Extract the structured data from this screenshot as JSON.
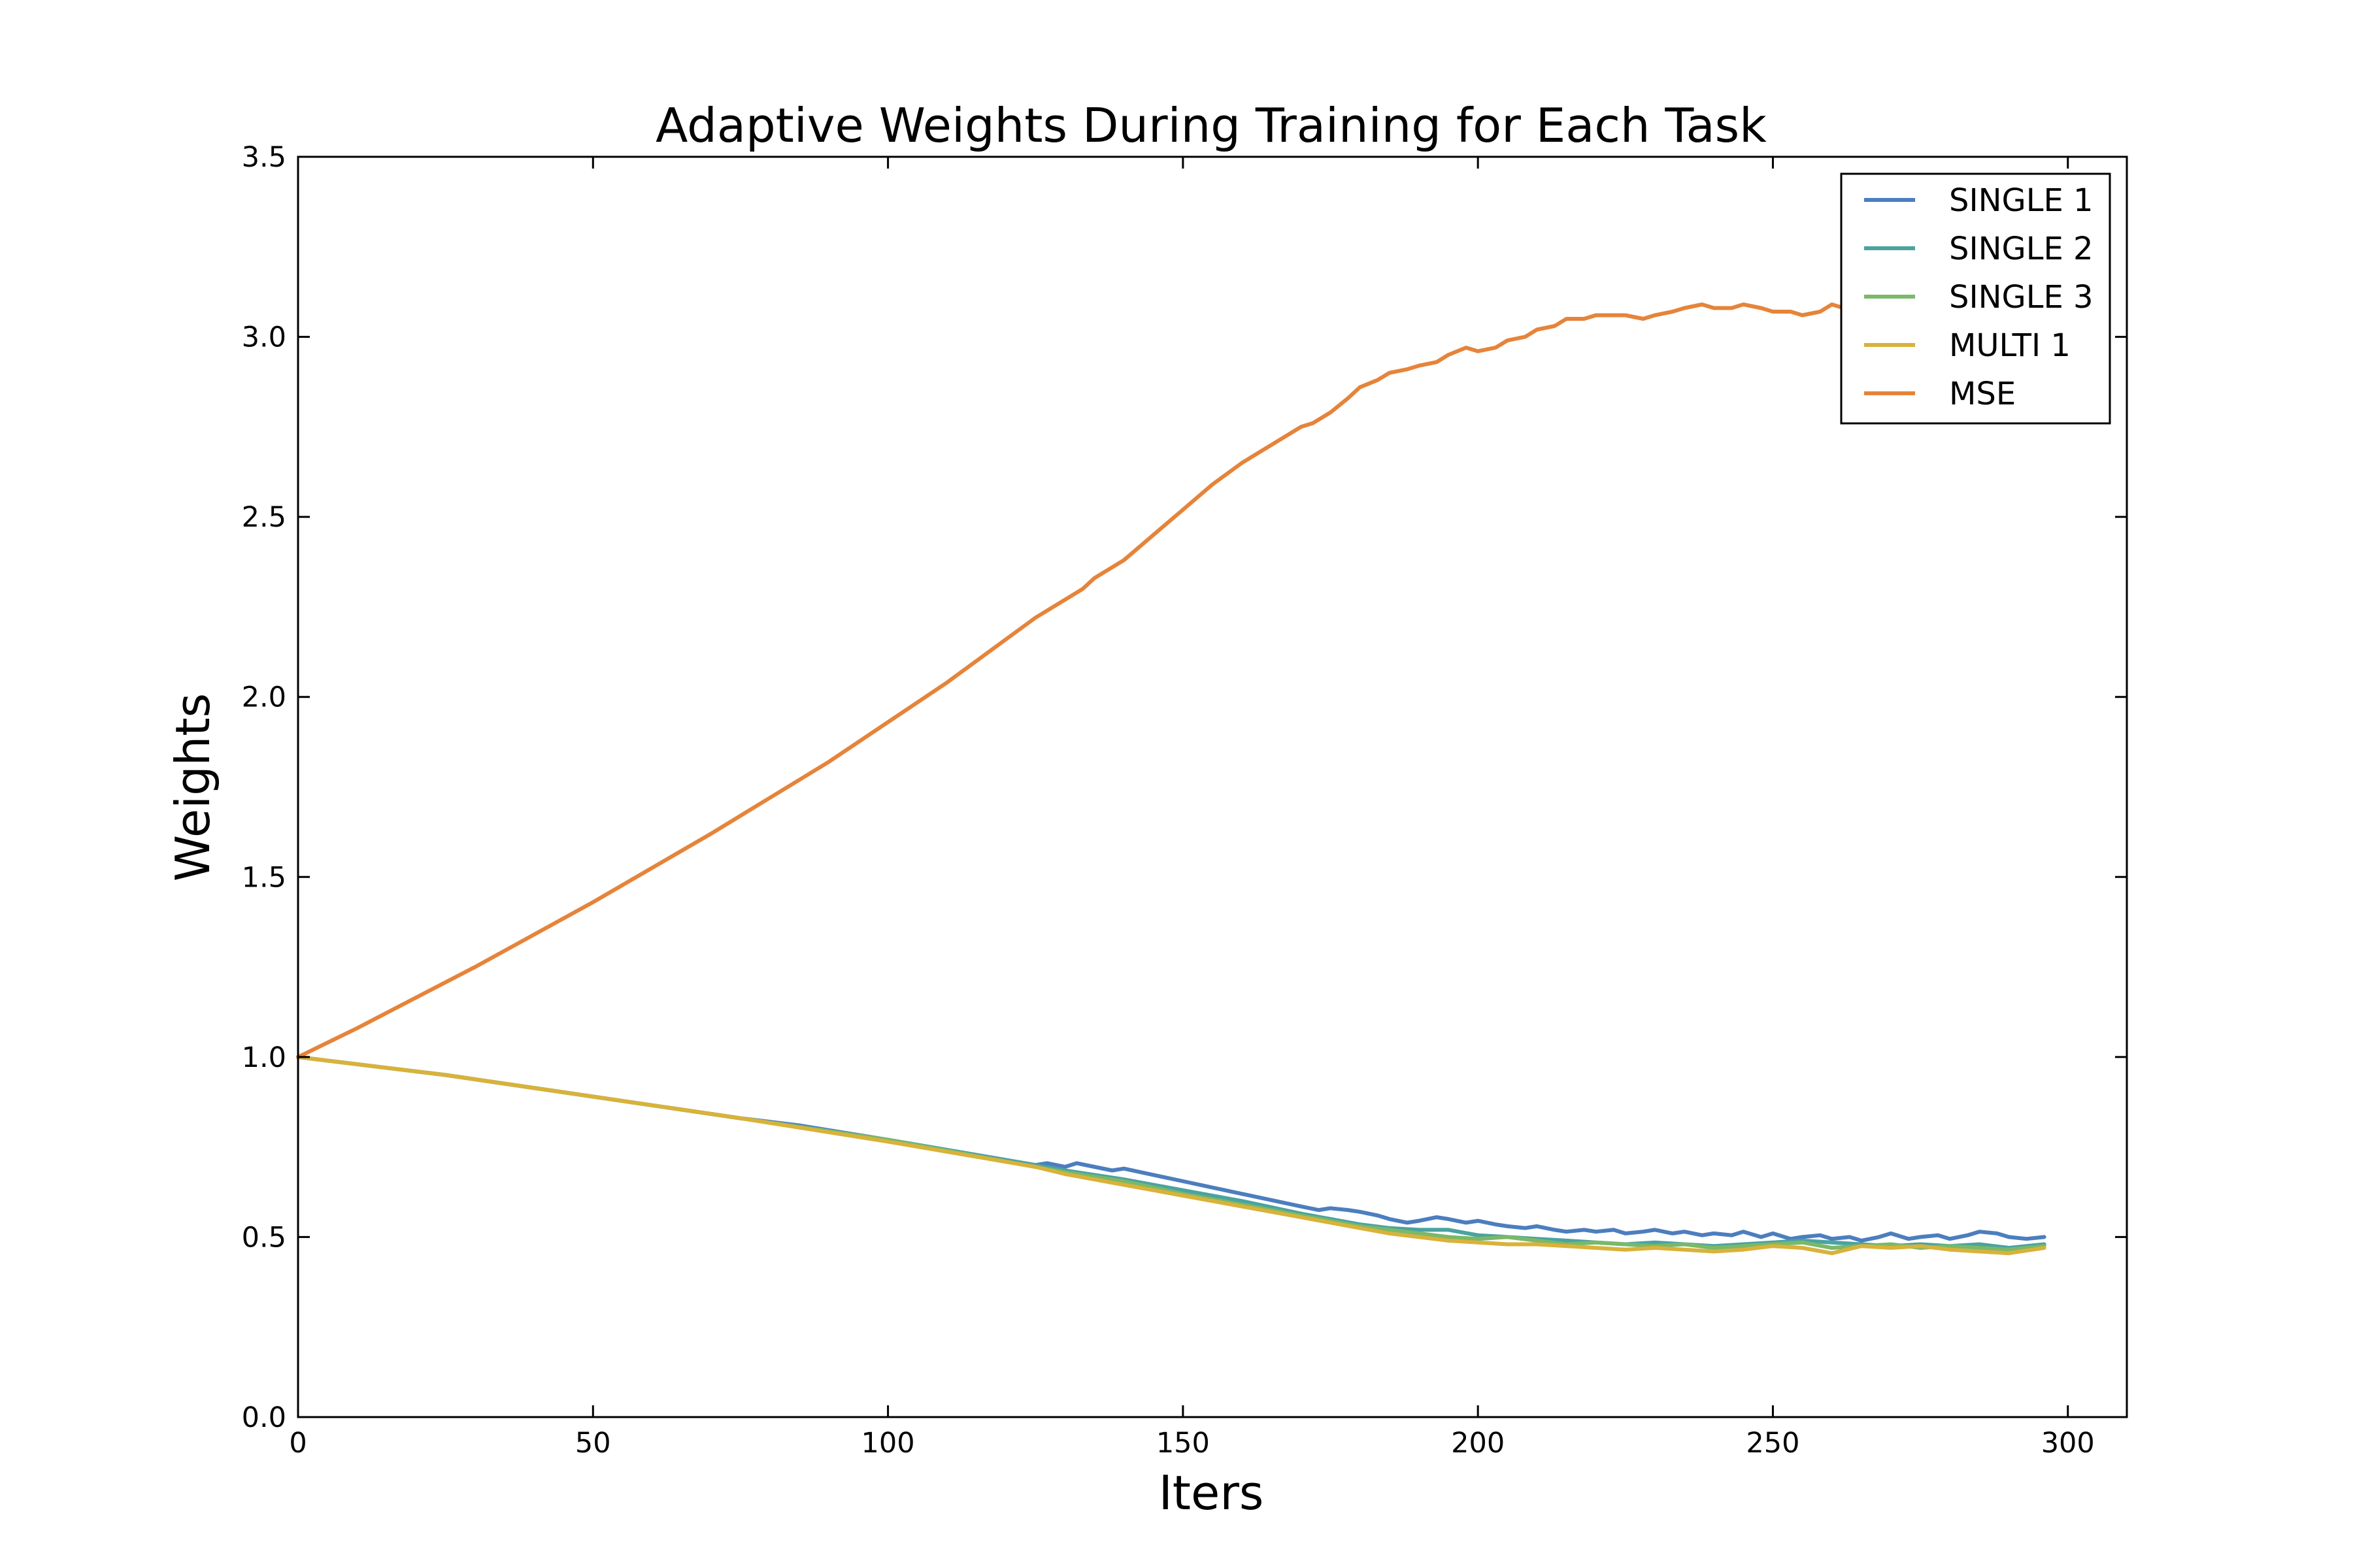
{
  "chart_data": {
    "type": "line",
    "title": "Adaptive Weights During Training for Each Task",
    "xlabel": "Iters",
    "ylabel": "Weights",
    "xlim": [
      0,
      310
    ],
    "ylim": [
      0,
      3.5
    ],
    "xticks": [
      0,
      50,
      100,
      150,
      200,
      250,
      300
    ],
    "xtick_labels": [
      "0",
      "50",
      "100",
      "150",
      "200",
      "250",
      "300"
    ],
    "yticks": [
      0,
      0.5,
      1,
      1.5,
      2,
      2.5,
      3,
      3.5
    ],
    "ytick_labels": [
      "0.0",
      "0.5",
      "1.0",
      "1.5",
      "2.0",
      "2.5",
      "3.0",
      "3.5"
    ],
    "grid": false,
    "legend_position": "top-right",
    "series": [
      {
        "name": "SINGLE 1",
        "color": "#4c7ebf",
        "x": [
          0,
          25,
          50,
          75,
          85,
          100,
          125,
          127,
          130,
          132,
          135,
          138,
          140,
          150,
          160,
          170,
          173,
          175,
          178,
          180,
          183,
          185,
          188,
          190,
          193,
          195,
          198,
          200,
          203,
          205,
          208,
          210,
          213,
          215,
          218,
          220,
          223,
          225,
          228,
          230,
          233,
          235,
          238,
          240,
          243,
          245,
          248,
          250,
          253,
          255,
          258,
          260,
          263,
          265,
          268,
          270,
          273,
          275,
          278,
          280,
          283,
          285,
          288,
          290,
          293,
          296
        ],
        "y": [
          1.0,
          0.95,
          0.89,
          0.83,
          0.81,
          0.77,
          0.7,
          0.705,
          0.695,
          0.705,
          0.695,
          0.685,
          0.69,
          0.655,
          0.62,
          0.585,
          0.575,
          0.58,
          0.575,
          0.57,
          0.56,
          0.55,
          0.54,
          0.545,
          0.555,
          0.55,
          0.54,
          0.545,
          0.535,
          0.53,
          0.525,
          0.53,
          0.52,
          0.515,
          0.52,
          0.515,
          0.52,
          0.51,
          0.515,
          0.52,
          0.51,
          0.515,
          0.505,
          0.51,
          0.505,
          0.515,
          0.5,
          0.51,
          0.495,
          0.5,
          0.505,
          0.495,
          0.5,
          0.49,
          0.5,
          0.51,
          0.495,
          0.5,
          0.505,
          0.495,
          0.505,
          0.515,
          0.51,
          0.5,
          0.495,
          0.5
        ]
      },
      {
        "name": "SINGLE 2",
        "color": "#4aa3a0",
        "x": [
          0,
          25,
          50,
          75,
          100,
          125,
          130,
          140,
          150,
          160,
          170,
          180,
          185,
          190,
          195,
          200,
          205,
          210,
          215,
          220,
          225,
          230,
          235,
          240,
          245,
          250,
          255,
          260,
          265,
          270,
          275,
          280,
          285,
          290,
          296
        ],
        "y": [
          1.0,
          0.95,
          0.89,
          0.83,
          0.77,
          0.7,
          0.685,
          0.66,
          0.63,
          0.6,
          0.565,
          0.535,
          0.525,
          0.52,
          0.52,
          0.505,
          0.5,
          0.495,
          0.49,
          0.485,
          0.48,
          0.485,
          0.48,
          0.475,
          0.48,
          0.485,
          0.49,
          0.485,
          0.48,
          0.475,
          0.48,
          0.475,
          0.48,
          0.47,
          0.48
        ]
      },
      {
        "name": "SINGLE 3",
        "color": "#7ab86a",
        "x": [
          0,
          25,
          50,
          75,
          100,
          125,
          130,
          140,
          150,
          160,
          170,
          180,
          185,
          190,
          195,
          200,
          205,
          210,
          215,
          220,
          225,
          230,
          235,
          240,
          245,
          250,
          255,
          260,
          265,
          270,
          275,
          280,
          285,
          290,
          296
        ],
        "y": [
          1.0,
          0.95,
          0.89,
          0.83,
          0.77,
          0.695,
          0.68,
          0.655,
          0.62,
          0.59,
          0.56,
          0.53,
          0.52,
          0.51,
          0.5,
          0.495,
          0.5,
          0.49,
          0.48,
          0.485,
          0.48,
          0.475,
          0.48,
          0.47,
          0.475,
          0.48,
          0.485,
          0.47,
          0.475,
          0.48,
          0.47,
          0.475,
          0.47,
          0.465,
          0.475
        ]
      },
      {
        "name": "MULTI 1",
        "color": "#d9b23a",
        "x": [
          0,
          25,
          50,
          75,
          100,
          125,
          130,
          140,
          150,
          160,
          170,
          180,
          185,
          190,
          195,
          200,
          205,
          210,
          215,
          220,
          225,
          230,
          235,
          240,
          245,
          250,
          255,
          260,
          265,
          270,
          275,
          280,
          285,
          290,
          296
        ],
        "y": [
          1.0,
          0.95,
          0.89,
          0.83,
          0.765,
          0.695,
          0.675,
          0.645,
          0.615,
          0.585,
          0.555,
          0.525,
          0.51,
          0.5,
          0.49,
          0.485,
          0.48,
          0.48,
          0.475,
          0.47,
          0.465,
          0.47,
          0.465,
          0.46,
          0.465,
          0.475,
          0.47,
          0.455,
          0.475,
          0.47,
          0.475,
          0.465,
          0.46,
          0.455,
          0.47
        ]
      },
      {
        "name": "MSE",
        "color": "#e5843a",
        "x": [
          0,
          10,
          20,
          30,
          40,
          50,
          60,
          70,
          80,
          85,
          90,
          100,
          110,
          120,
          125,
          128,
          130,
          133,
          135,
          138,
          140,
          145,
          150,
          155,
          160,
          163,
          165,
          168,
          170,
          172,
          175,
          178,
          180,
          183,
          185,
          188,
          190,
          193,
          195,
          198,
          200,
          203,
          205,
          208,
          210,
          213,
          215,
          218,
          220,
          223,
          225,
          228,
          230,
          233,
          235,
          238,
          240,
          243,
          245,
          248,
          250,
          253,
          255,
          258,
          260,
          262
        ],
        "y": [
          1.0,
          1.08,
          1.165,
          1.25,
          1.34,
          1.43,
          1.525,
          1.62,
          1.72,
          1.77,
          1.82,
          1.93,
          2.04,
          2.16,
          2.22,
          2.25,
          2.27,
          2.3,
          2.33,
          2.36,
          2.38,
          2.45,
          2.52,
          2.59,
          2.65,
          2.68,
          2.7,
          2.73,
          2.75,
          2.76,
          2.79,
          2.83,
          2.86,
          2.88,
          2.9,
          2.91,
          2.92,
          2.93,
          2.95,
          2.97,
          2.96,
          2.97,
          2.99,
          3.0,
          3.02,
          3.03,
          3.05,
          3.05,
          3.06,
          3.06,
          3.06,
          3.05,
          3.06,
          3.07,
          3.08,
          3.09,
          3.08,
          3.08,
          3.09,
          3.08,
          3.07,
          3.07,
          3.06,
          3.07,
          3.09,
          3.08
        ]
      }
    ]
  }
}
